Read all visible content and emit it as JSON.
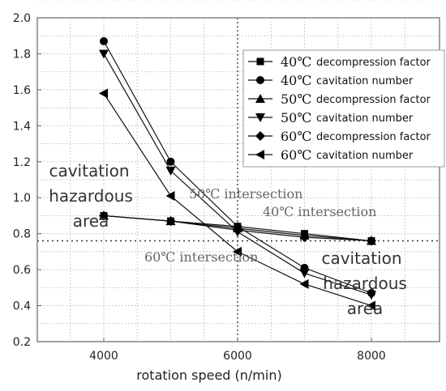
{
  "chart_data": {
    "type": "line",
    "x": [
      4000,
      5000,
      6000,
      7000,
      8000
    ],
    "xlabel": "rotation speed (n/min)",
    "ylabel": "",
    "xlim": [
      3000,
      9000
    ],
    "ylim": [
      0.2,
      2.0
    ],
    "xticks": [
      "4000",
      "6000",
      "8000"
    ],
    "yticks": [
      "0.2",
      "0.4",
      "0.6",
      "0.8",
      "1.0",
      "1.2",
      "1.4",
      "1.6",
      "1.8",
      "2.0"
    ],
    "grid": "dotted",
    "legend_position": "top-right",
    "series": [
      {
        "name": "decompression factor",
        "temp": "40℃",
        "marker": "square",
        "values": [
          0.9,
          0.87,
          0.84,
          0.8,
          0.76
        ]
      },
      {
        "name": "cavitation number",
        "temp": "40℃",
        "marker": "circle",
        "values": [
          1.87,
          1.2,
          0.84,
          0.61,
          0.47
        ]
      },
      {
        "name": "decompression factor",
        "temp": "50℃",
        "marker": "triangle-up",
        "values": [
          0.9,
          0.87,
          0.83,
          0.79,
          0.76
        ]
      },
      {
        "name": "cavitation number",
        "temp": "50℃",
        "marker": "triangle-down",
        "values": [
          1.8,
          1.15,
          0.81,
          0.58,
          0.46
        ]
      },
      {
        "name": "decompression factor",
        "temp": "60℃",
        "marker": "diamond",
        "values": [
          0.9,
          0.87,
          0.82,
          0.78,
          0.76
        ]
      },
      {
        "name": "cavitation number",
        "temp": "60℃",
        "marker": "triangle-left",
        "values": [
          1.58,
          1.01,
          0.7,
          0.52,
          0.4
        ]
      }
    ],
    "reference_line": {
      "y": 0.76,
      "style": "dotted"
    },
    "vertical_line": {
      "x": 6000,
      "style": "dotted"
    },
    "annotations": {
      "left_zone": [
        "cavitation",
        "hazardous",
        "area"
      ],
      "right_zone": [
        "cavitation",
        "hazardous",
        "area"
      ],
      "intersection_50": "50℃ intersection",
      "intersection_40": "40℃ intersection",
      "intersection_60": "60℃ intersection"
    }
  }
}
